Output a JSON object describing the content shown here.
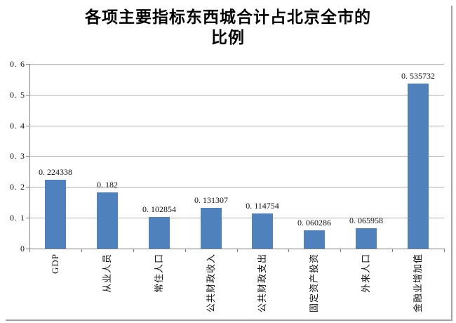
{
  "chart_data": {
    "type": "bar",
    "title": "各项主要指标东西城合计占北京全市的比例",
    "title_lines": [
      "各项主要指标东西城合计占北京全市的",
      "比例"
    ],
    "categories": [
      "GDP",
      "从业人员",
      "常住人口",
      "公共财政收入",
      "公共财政支出",
      "固定资产投资",
      "外来人口",
      "金融业增加值"
    ],
    "values": [
      0.224338,
      0.182,
      0.102854,
      0.131307,
      0.114754,
      0.060286,
      0.065958,
      0.535732
    ],
    "value_labels": [
      "0. 224338",
      "0. 182",
      "0. 102854",
      "0. 131307",
      "0. 114754",
      "0. 060286",
      "0. 065958",
      "0. 535732"
    ],
    "xlabel": "",
    "ylabel": "",
    "ylim": [
      0,
      0.6
    ],
    "ytick_step": 0.1,
    "ytick_labels": [
      "0",
      "0. 1",
      "0. 2",
      "0. 3",
      "0. 4",
      "0. 5",
      "0. 6"
    ],
    "grid": true,
    "legend": "none",
    "bar_color": "#4f81bd",
    "gridline_color": "#b0b0b0",
    "axis_color": "#7f7f7f"
  }
}
